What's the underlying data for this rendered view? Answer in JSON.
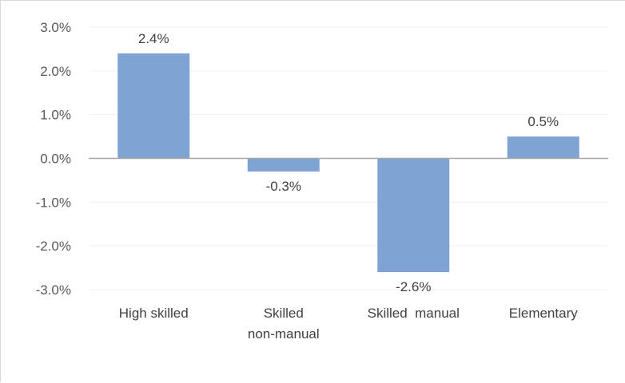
{
  "chart_data": {
    "type": "bar",
    "title": "",
    "xlabel": "",
    "ylabel": "",
    "categories": [
      [
        "High skilled"
      ],
      [
        "Skilled",
        "non-manual"
      ],
      [
        "Skilled  manual"
      ],
      [
        "Elementary"
      ]
    ],
    "values": [
      2.4,
      -0.3,
      -2.6,
      0.5
    ],
    "data_labels": [
      "2.4%",
      "-0.3%",
      "-2.6%",
      "0.5%"
    ],
    "ylim": [
      -3.0,
      3.0
    ],
    "yticks": [
      3.0,
      2.0,
      1.0,
      0.0,
      -1.0,
      -2.0,
      -3.0
    ],
    "ytick_labels": [
      "3.0%",
      "2.0%",
      "1.0%",
      "0.0%",
      "-1.0%",
      "-2.0%",
      "-3.0%"
    ],
    "grid": true,
    "legend": "none",
    "bar_color": "#7fa4d3",
    "axis_color": "#a6a6a6",
    "grid_color": "#f0f0f0"
  }
}
